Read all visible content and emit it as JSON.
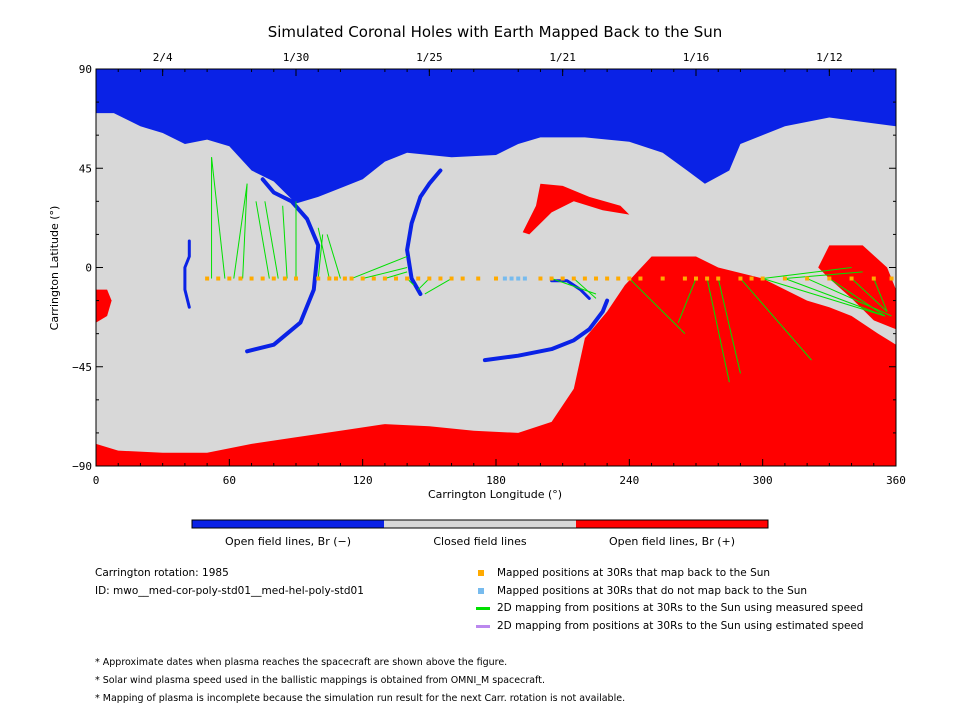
{
  "chart_data": {
    "type": "map",
    "title": "Simulated Coronal Holes with Earth Mapped Back to the Sun",
    "xlabel": "Carrington Longitude (°)",
    "ylabel": "Carrington Latitude (°)",
    "xlim": [
      0,
      360
    ],
    "ylim": [
      -90,
      90
    ],
    "x_ticks": [
      "0",
      "60",
      "120",
      "180",
      "240",
      "300",
      "360"
    ],
    "y_ticks": [
      "90",
      "45",
      "0",
      "−45",
      "−90"
    ],
    "date_ticks": [
      {
        "label": "2/4",
        "lon": 30
      },
      {
        "label": "1/30",
        "lon": 90
      },
      {
        "label": "1/25",
        "lon": 150
      },
      {
        "label": "1/21",
        "lon": 210
      },
      {
        "label": "1/16",
        "lon": 270
      },
      {
        "label": "1/12",
        "lon": 330
      }
    ],
    "colors": {
      "open_negative": "#0a22e6",
      "closed": "#d8d8d8",
      "open_positive": "#ff0000",
      "mapped": "#ffaa00",
      "unmapped": "#77bbee",
      "measured": "#00e000",
      "estimated": "#bb88ee"
    },
    "colorbar": {
      "labels": [
        "Open field lines, Br (−)",
        "Closed field lines",
        "Open field lines, Br (+)"
      ]
    },
    "regions": {
      "north_polar_negative": [
        [
          0,
          90
        ],
        [
          360,
          90
        ],
        [
          360,
          64
        ],
        [
          330,
          68
        ],
        [
          310,
          64
        ],
        [
          290,
          56
        ],
        [
          285,
          44
        ],
        [
          274,
          38
        ],
        [
          266,
          44
        ],
        [
          255,
          52
        ],
        [
          240,
          57
        ],
        [
          220,
          59
        ],
        [
          200,
          59
        ],
        [
          190,
          56
        ],
        [
          180,
          51
        ],
        [
          160,
          50
        ],
        [
          140,
          52
        ],
        [
          130,
          48
        ],
        [
          120,
          40
        ],
        [
          110,
          36
        ],
        [
          100,
          32
        ],
        [
          90,
          29
        ],
        [
          80,
          39
        ],
        [
          70,
          44
        ],
        [
          60,
          55
        ],
        [
          50,
          58
        ],
        [
          40,
          56
        ],
        [
          30,
          61
        ],
        [
          20,
          64
        ],
        [
          8,
          70
        ],
        [
          0,
          70
        ]
      ],
      "south_polar_positive": [
        [
          0,
          -90
        ],
        [
          360,
          -90
        ],
        [
          360,
          -35
        ],
        [
          352,
          -30
        ],
        [
          340,
          -22
        ],
        [
          330,
          -18
        ],
        [
          320,
          -15
        ],
        [
          300,
          -5
        ],
        [
          280,
          0
        ],
        [
          270,
          5
        ],
        [
          260,
          5
        ],
        [
          250,
          5
        ],
        [
          238,
          -8
        ],
        [
          230,
          -20
        ],
        [
          220,
          -32
        ],
        [
          215,
          -55
        ],
        [
          205,
          -70
        ],
        [
          190,
          -75
        ],
        [
          170,
          -74
        ],
        [
          150,
          -72
        ],
        [
          130,
          -71
        ],
        [
          110,
          -74
        ],
        [
          90,
          -77
        ],
        [
          70,
          -80
        ],
        [
          50,
          -84
        ],
        [
          30,
          -84
        ],
        [
          10,
          -83
        ],
        [
          0,
          -80
        ]
      ],
      "east_positive_lobe": [
        [
          330,
          10
        ],
        [
          345,
          10
        ],
        [
          356,
          0
        ],
        [
          360,
          -10
        ],
        [
          360,
          -28
        ],
        [
          350,
          -24
        ],
        [
          340,
          -14
        ],
        [
          330,
          -5
        ],
        [
          325,
          0
        ]
      ],
      "west_positive_blob": [
        [
          0,
          -10
        ],
        [
          5,
          -10
        ],
        [
          7,
          -15
        ],
        [
          5,
          -22
        ],
        [
          0,
          -25
        ]
      ],
      "small_positive_tail": [
        [
          262,
          -22
        ],
        [
          272,
          -22
        ],
        [
          276,
          -24
        ],
        [
          268,
          -32
        ],
        [
          264,
          -30
        ]
      ],
      "arc_positive": [
        [
          200,
          38
        ],
        [
          210,
          37
        ],
        [
          222,
          32
        ],
        [
          236,
          28
        ],
        [
          240,
          24
        ],
        [
          228,
          26
        ],
        [
          215,
          30
        ],
        [
          205,
          25
        ],
        [
          195,
          15
        ],
        [
          192,
          16
        ],
        [
          198,
          28
        ]
      ]
    },
    "negative_streaks": [
      {
        "points": [
          [
            42,
            -18
          ],
          [
            40,
            -10
          ],
          [
            40,
            0
          ],
          [
            42,
            5
          ],
          [
            42,
            12
          ]
        ],
        "width": 3
      },
      {
        "points": [
          [
            75,
            40
          ],
          [
            80,
            34
          ],
          [
            88,
            30
          ],
          [
            95,
            22
          ],
          [
            100,
            10
          ],
          [
            98,
            -10
          ],
          [
            92,
            -25
          ],
          [
            80,
            -35
          ],
          [
            68,
            -38
          ]
        ],
        "width": 4
      },
      {
        "points": [
          [
            155,
            44
          ],
          [
            150,
            38
          ],
          [
            146,
            32
          ],
          [
            142,
            20
          ],
          [
            140,
            8
          ],
          [
            142,
            -5
          ],
          [
            146,
            -12
          ]
        ],
        "width": 4
      },
      {
        "points": [
          [
            175,
            -42
          ],
          [
            190,
            -40
          ],
          [
            205,
            -37
          ],
          [
            215,
            -33
          ],
          [
            222,
            -28
          ],
          [
            228,
            -20
          ],
          [
            230,
            -15
          ]
        ],
        "width": 4
      },
      {
        "points": [
          [
            205,
            -6
          ],
          [
            212,
            -6
          ],
          [
            218,
            -10
          ],
          [
            222,
            -14
          ]
        ],
        "width": 3
      }
    ],
    "mapped_positions_lon": [
      50,
      55,
      60,
      65,
      70,
      75,
      80,
      85,
      90,
      100,
      105,
      108,
      112,
      115,
      120,
      125,
      130,
      135,
      140,
      145,
      150,
      155,
      160,
      165,
      172,
      180,
      200,
      205,
      210,
      215,
      220,
      225,
      230,
      235,
      240,
      245,
      255,
      265,
      270,
      275,
      280,
      290,
      295,
      300,
      310,
      320,
      330,
      340,
      350,
      358
    ],
    "unmapped_positions_lon": [
      184,
      187,
      190,
      193
    ],
    "mapped_lat": -5,
    "measured_lines": [
      [
        [
          52,
          -5
        ],
        [
          52,
          50
        ]
      ],
      [
        [
          58,
          -5
        ],
        [
          52,
          50
        ]
      ],
      [
        [
          62,
          -5
        ],
        [
          68,
          38
        ]
      ],
      [
        [
          66,
          -5
        ],
        [
          68,
          38
        ]
      ],
      [
        [
          78,
          -5
        ],
        [
          72,
          30
        ]
      ],
      [
        [
          82,
          -5
        ],
        [
          76,
          30
        ]
      ],
      [
        [
          86,
          -5
        ],
        [
          84,
          28
        ]
      ],
      [
        [
          90,
          -5
        ],
        [
          90,
          30
        ]
      ],
      [
        [
          100,
          -5
        ],
        [
          102,
          15
        ]
      ],
      [
        [
          105,
          -5
        ],
        [
          100,
          18
        ]
      ],
      [
        [
          110,
          -5
        ],
        [
          104,
          15
        ]
      ],
      [
        [
          115,
          -5
        ],
        [
          140,
          5
        ]
      ],
      [
        [
          120,
          -5
        ],
        [
          140,
          0
        ]
      ],
      [
        [
          130,
          -5
        ],
        [
          140,
          -2
        ]
      ],
      [
        [
          140,
          -5
        ],
        [
          143,
          -8
        ]
      ],
      [
        [
          150,
          -5
        ],
        [
          145,
          -10
        ]
      ],
      [
        [
          160,
          -5
        ],
        [
          148,
          -12
        ]
      ],
      [
        [
          205,
          -5
        ],
        [
          225,
          -12
        ]
      ],
      [
        [
          215,
          -5
        ],
        [
          225,
          -14
        ]
      ],
      [
        [
          240,
          -5
        ],
        [
          265,
          -30
        ]
      ],
      [
        [
          270,
          -5
        ],
        [
          262,
          -25
        ]
      ],
      [
        [
          275,
          -5
        ],
        [
          285,
          -52
        ]
      ],
      [
        [
          280,
          -5
        ],
        [
          290,
          -48
        ]
      ],
      [
        [
          290,
          -5
        ],
        [
          322,
          -42
        ]
      ],
      [
        [
          300,
          -5
        ],
        [
          355,
          -22
        ]
      ],
      [
        [
          310,
          -5
        ],
        [
          355,
          -22
        ]
      ],
      [
        [
          320,
          -5
        ],
        [
          358,
          -22
        ]
      ],
      [
        [
          330,
          -5
        ],
        [
          355,
          -22
        ]
      ],
      [
        [
          340,
          -5
        ],
        [
          356,
          -20
        ]
      ],
      [
        [
          350,
          -5
        ],
        [
          356,
          -20
        ]
      ],
      [
        [
          300,
          -5
        ],
        [
          340,
          0
        ]
      ],
      [
        [
          310,
          -5
        ],
        [
          345,
          -2
        ]
      ]
    ]
  },
  "info": {
    "rotation": "Carrington rotation: 1985",
    "id": "ID: mwo__med-cor-poly-std01__med-hel-poly-std01"
  },
  "legend": {
    "mapped": "Mapped positions at 30Rs that map back to the Sun",
    "unmapped": "Mapped positions at 30Rs that do not map back to the Sun",
    "measured": "2D mapping from positions at 30Rs to the Sun using measured speed",
    "estimated": "2D mapping from positions at 30Rs to the Sun using estimated speed"
  },
  "notes": [
    "* Approximate dates when plasma reaches the spacecraft are shown above the figure.",
    "* Solar wind plasma speed used in the ballistic mappings is obtained from OMNI_M spacecraft.",
    "* Mapping of plasma is incomplete because the simulation run result for the next Carr. rotation is not available."
  ]
}
